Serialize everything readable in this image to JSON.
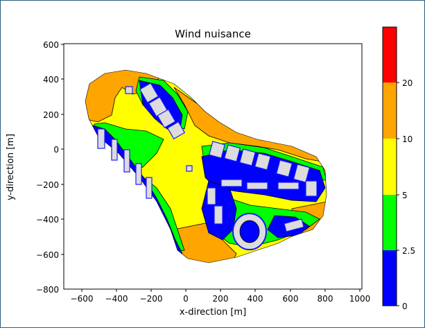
{
  "chart_data": {
    "type": "heatmap",
    "title": "Wind nuisance",
    "xlabel": "x-direction [m]",
    "ylabel": "y-direction [m]",
    "xlim": [
      -700,
      1000
    ],
    "ylim": [
      -800,
      600
    ],
    "xticks": [
      "−600",
      "−400",
      "−200",
      "0",
      "200",
      "400",
      "600",
      "800",
      "1000"
    ],
    "xtick_values": [
      -600,
      -400,
      -200,
      0,
      200,
      400,
      600,
      800,
      1000
    ],
    "yticks": [
      "600",
      "400",
      "200",
      "0",
      "−200",
      "−400",
      "−600",
      "−800"
    ],
    "ytick_values": [
      600,
      400,
      200,
      0,
      -200,
      -400,
      -600,
      -800
    ],
    "grid": false,
    "colorbar": {
      "bands": [
        {
          "from": 0,
          "to": 2.5,
          "color": "#0000ff"
        },
        {
          "from": 2.5,
          "to": 5,
          "color": "#00ff00"
        },
        {
          "from": 5,
          "to": 10,
          "color": "#ffff00"
        },
        {
          "from": 10,
          "to": 20,
          "color": "#ffa500"
        },
        {
          "from": 20,
          "to": 28,
          "color": "#ff0000"
        }
      ],
      "ticks": [
        "0",
        "2.5",
        "5",
        "10",
        "20"
      ]
    },
    "colors": {
      "blue": "#0000ff",
      "green": "#00ff00",
      "yellow": "#ffff00",
      "orange": "#ffa500",
      "red": "#ff0000",
      "building": "#dcdcdc"
    }
  }
}
